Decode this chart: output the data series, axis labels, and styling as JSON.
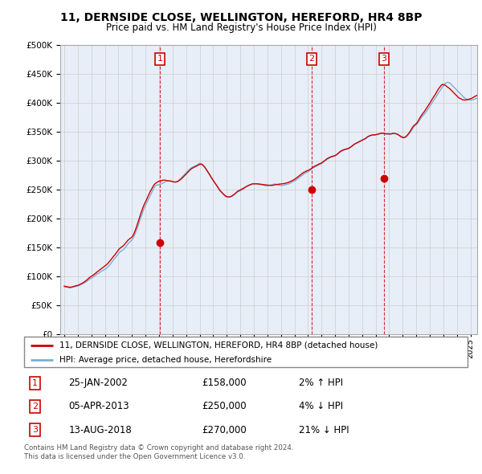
{
  "title": "11, DERNSIDE CLOSE, WELLINGTON, HEREFORD, HR4 8BP",
  "subtitle": "Price paid vs. HM Land Registry's House Price Index (HPI)",
  "ylim": [
    0,
    500000
  ],
  "yticks": [
    0,
    50000,
    100000,
    150000,
    200000,
    250000,
    300000,
    350000,
    400000,
    450000,
    500000
  ],
  "legend_line1": "11, DERNSIDE CLOSE, WELLINGTON, HEREFORD, HR4 8BP (detached house)",
  "legend_line2": "HPI: Average price, detached house, Herefordshire",
  "sale_color": "#cc0000",
  "hpi_color": "#7bafd4",
  "grid_color": "#cccccc",
  "bg_color": "#e8eef8",
  "transaction_table": [
    {
      "num": 1,
      "date": "25-JAN-2002",
      "price": "£158,000",
      "hpi": "2% ↑ HPI"
    },
    {
      "num": 2,
      "date": "05-APR-2013",
      "price": "£250,000",
      "hpi": "4% ↓ HPI"
    },
    {
      "num": 3,
      "date": "13-AUG-2018",
      "price": "£270,000",
      "hpi": "21% ↓ HPI"
    }
  ],
  "footer": "Contains HM Land Registry data © Crown copyright and database right 2024.\nThis data is licensed under the Open Government Licence v3.0.",
  "sale_markers": [
    {
      "year": 2002.07,
      "price": 158000,
      "label": "1"
    },
    {
      "year": 2013.27,
      "price": 250000,
      "label": "2"
    },
    {
      "year": 2018.62,
      "price": 270000,
      "label": "3"
    }
  ],
  "hpi_monthly": {
    "start_year": 1995.0,
    "step": 0.08333,
    "values": [
      82000,
      81500,
      81200,
      80800,
      80400,
      80100,
      80500,
      81000,
      81500,
      82000,
      82500,
      83000,
      83500,
      84000,
      85000,
      86000,
      87000,
      88000,
      89000,
      90000,
      91500,
      93000,
      94500,
      96000,
      97000,
      98000,
      99500,
      101000,
      102500,
      104000,
      105000,
      106000,
      107500,
      109000,
      110000,
      111000,
      112000,
      113500,
      115000,
      117000,
      119000,
      121500,
      124000,
      127000,
      129500,
      131500,
      134000,
      136500,
      139000,
      141500,
      143000,
      144500,
      146000,
      147500,
      149500,
      152000,
      155000,
      157500,
      159500,
      161000,
      163000,
      166000,
      170000,
      175000,
      180000,
      185000,
      191000,
      197000,
      203000,
      208000,
      214000,
      219000,
      223000,
      227000,
      231000,
      235000,
      239000,
      243000,
      247000,
      251000,
      255000,
      257000,
      258000,
      258000,
      258500,
      259000,
      260000,
      261000,
      262000,
      263000,
      264000,
      265000,
      265000,
      265000,
      264500,
      264000,
      263500,
      263000,
      263000,
      263500,
      264000,
      265000,
      267000,
      269000,
      271000,
      273000,
      275000,
      277000,
      279000,
      281000,
      283000,
      285000,
      287000,
      288000,
      289000,
      290000,
      291000,
      292000,
      293000,
      295000,
      295500,
      295000,
      294000,
      292000,
      290000,
      287000,
      284000,
      281000,
      278000,
      275000,
      272000,
      269000,
      266000,
      263000,
      260000,
      257000,
      254000,
      251000,
      248000,
      246000,
      244000,
      242000,
      240000,
      238000,
      237500,
      237000,
      237000,
      237500,
      238000,
      239000,
      240500,
      242000,
      243500,
      245000,
      246500,
      247000,
      248000,
      249000,
      250000,
      251500,
      253000,
      254500,
      255500,
      256500,
      257500,
      258000,
      259000,
      259500,
      260000,
      260000,
      260000,
      260000,
      259500,
      259000,
      259000,
      258500,
      258000,
      257500,
      257000,
      256500,
      256500,
      257000,
      257500,
      258000,
      258500,
      259000,
      259500,
      259500,
      259000,
      258500,
      258000,
      257500,
      257000,
      257000,
      257500,
      258000,
      258500,
      259000,
      259500,
      260000,
      261000,
      262000,
      263000,
      264000,
      265000,
      266000,
      267500,
      269000,
      270500,
      272000,
      273500,
      275000,
      276500,
      278000,
      279000,
      280000,
      281000,
      282500,
      284000,
      285500,
      287000,
      288000,
      289000,
      290000,
      291000,
      292000,
      293000,
      294000,
      295000,
      296500,
      298000,
      299500,
      301000,
      302500,
      303500,
      304500,
      305500,
      306500,
      307000,
      307500,
      308500,
      309500,
      311000,
      312500,
      314000,
      315500,
      316500,
      317500,
      318500,
      319000,
      319500,
      320000,
      321000,
      322000,
      323500,
      325000,
      326500,
      328000,
      329000,
      330000,
      331000,
      332000,
      333000,
      334000,
      335000,
      336000,
      337000,
      338000,
      339500,
      341000,
      342000,
      343000,
      343500,
      344000,
      344000,
      344000,
      344500,
      345000,
      345500,
      346000,
      346500,
      347000,
      347000,
      347000,
      346500,
      346000,
      346000,
      346000,
      346000,
      346000,
      346500,
      347000,
      347000,
      347000,
      346500,
      346000,
      345000,
      344000,
      343000,
      342000,
      341000,
      340500,
      340000,
      341000,
      343000,
      345000,
      347500,
      350000,
      353000,
      356000,
      359000,
      360500,
      362000,
      364000,
      367000,
      370000,
      373000,
      376000,
      378000,
      380000,
      382500,
      385000,
      388000,
      391000,
      394000,
      397000,
      400000,
      403000,
      406000,
      409000,
      412000,
      415000,
      418000,
      421000,
      424000,
      427000,
      430000,
      432000,
      434000,
      435000,
      435500,
      435000,
      434000,
      432000,
      430000,
      428000,
      426000,
      424000,
      422000,
      420000,
      418000,
      416000,
      414000,
      412000,
      410000,
      408500,
      407000,
      406000,
      405500,
      405000,
      405000,
      405000,
      405500,
      406000,
      406500,
      407500,
      408500,
      409500,
      410500,
      411500,
      412500,
      413500,
      415000,
      416000,
      417000
    ]
  },
  "pp_monthly": {
    "start_year": 1995.0,
    "step": 0.08333,
    "values": [
      83000,
      82500,
      82200,
      81800,
      81400,
      81100,
      81300,
      81800,
      82300,
      83000,
      83500,
      84000,
      84500,
      85200,
      86200,
      87200,
      88200,
      89300,
      90700,
      92200,
      93800,
      95500,
      97200,
      99000,
      100200,
      101300,
      102800,
      104300,
      106000,
      107500,
      109000,
      110500,
      112000,
      113500,
      115000,
      116500,
      118000,
      119500,
      121200,
      123200,
      125500,
      128000,
      130500,
      133000,
      135500,
      137500,
      140200,
      143000,
      145800,
      148000,
      149500,
      151000,
      152500,
      154200,
      156500,
      159000,
      161500,
      163500,
      165000,
      166500,
      168000,
      171000,
      175000,
      180000,
      185500,
      191500,
      197500,
      203500,
      209500,
      215000,
      220500,
      225000,
      229000,
      233000,
      237500,
      242000,
      246000,
      249500,
      253000,
      256500,
      259500,
      261000,
      262500,
      263500,
      264500,
      265000,
      265500,
      266000,
      266500,
      266500,
      266000,
      265500,
      265000,
      265000,
      265000,
      264500,
      264000,
      263500,
      263000,
      263200,
      263500,
      264500,
      266000,
      267500,
      269000,
      271000,
      273000,
      275000,
      277000,
      279000,
      281000,
      283000,
      285000,
      286500,
      287500,
      288500,
      289500,
      290500,
      291500,
      292500,
      293500,
      294000,
      293500,
      292000,
      290000,
      287500,
      284500,
      281500,
      278500,
      275500,
      272000,
      269000,
      266000,
      263000,
      260000,
      257500,
      254500,
      251500,
      248500,
      246500,
      244500,
      242500,
      240500,
      239000,
      238000,
      237500,
      237200,
      237500,
      238500,
      239500,
      241000,
      242500,
      244000,
      246000,
      247500,
      248500,
      249500,
      250500,
      251500,
      252500,
      253800,
      255000,
      256000,
      257000,
      258000,
      258500,
      259500,
      260000,
      260000,
      260000,
      260000,
      260000,
      259800,
      259500,
      259200,
      259000,
      258800,
      258500,
      258200,
      258000,
      257800,
      257500,
      257300,
      257200,
      257200,
      257500,
      258000,
      258500,
      258800,
      259000,
      259200,
      259500,
      259800,
      260000,
      260200,
      260500,
      261000,
      261500,
      262000,
      262800,
      263500,
      264500,
      265500,
      266500,
      267500,
      269000,
      270500,
      272000,
      273500,
      275000,
      276500,
      278000,
      279500,
      280500,
      281500,
      282500,
      283000,
      284000,
      285000,
      286500,
      288000,
      289500,
      290500,
      291500,
      292500,
      293500,
      294500,
      295200,
      296000,
      297500,
      299000,
      300500,
      302000,
      303500,
      304500,
      305500,
      306500,
      307200,
      307800,
      308200,
      309000,
      310000,
      311500,
      313000,
      315000,
      316500,
      317500,
      318500,
      319200,
      319800,
      320200,
      320800,
      321500,
      322500,
      323800,
      325200,
      326800,
      328500,
      329500,
      330500,
      331500,
      332500,
      333500,
      334500,
      335500,
      336500,
      337500,
      338500,
      340000,
      341500,
      342500,
      343500,
      344000,
      344500,
      344800,
      344800,
      345000,
      345500,
      346000,
      346500,
      347000,
      347500,
      347500,
      347500,
      347000,
      346500,
      346500,
      346500,
      346500,
      346200,
      346500,
      347000,
      347200,
      347000,
      346500,
      346000,
      345000,
      343500,
      342000,
      340800,
      340000,
      340000,
      340500,
      342000,
      344000,
      346500,
      349000,
      352000,
      355500,
      358500,
      361000,
      362500,
      364000,
      366500,
      370000,
      373500,
      376500,
      379500,
      382000,
      384500,
      387500,
      390500,
      393500,
      396500,
      399500,
      402500,
      406000,
      409000,
      412000,
      415000,
      418500,
      422000,
      425000,
      427500,
      430000,
      432000,
      431500,
      431000,
      430000,
      428500,
      427000,
      425500,
      424000,
      422000,
      420000,
      418000,
      416000,
      414000,
      412000,
      410000,
      408500,
      407500,
      406500,
      405500,
      405000,
      405000,
      405000,
      405200,
      406000,
      406500,
      407000,
      407800,
      408800,
      410000,
      411200,
      412200,
      413000,
      414000,
      415000,
      416000,
      417000,
      418000,
      419000,
      420000,
      421000
    ]
  }
}
